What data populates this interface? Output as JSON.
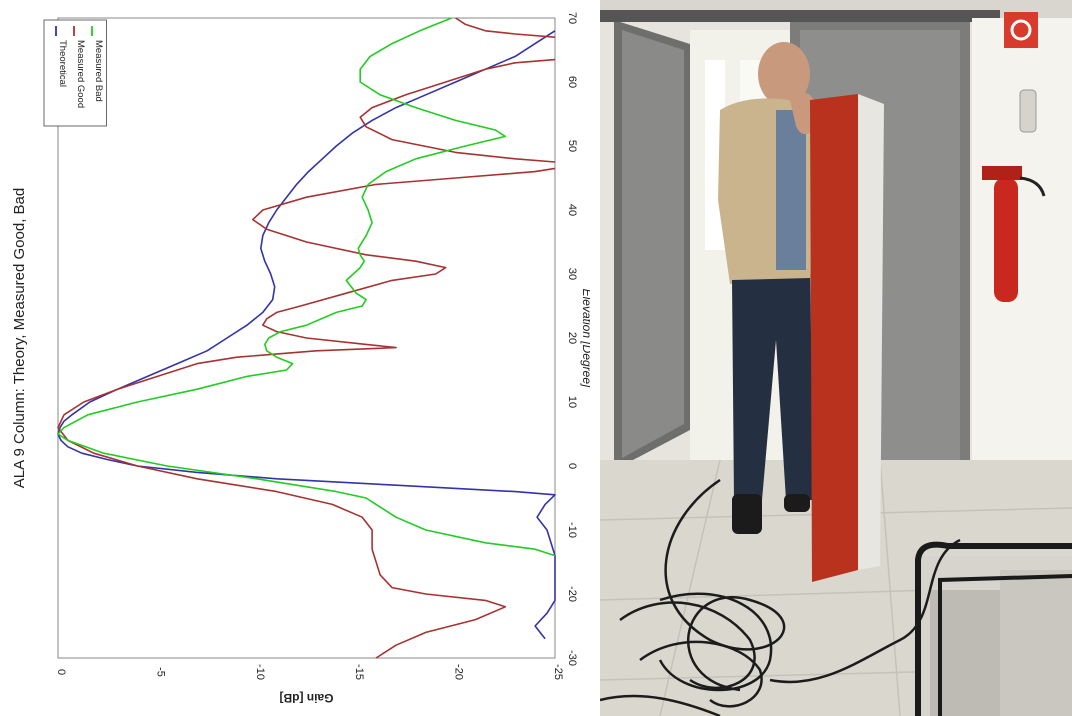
{
  "chart_data": {
    "type": "line",
    "title": "ALA 9 Column: Theory, Measured Good, Bad",
    "xlabel": "Elevation [Degree]",
    "ylabel": "Gain [dB]",
    "xlim": [
      -30,
      70
    ],
    "ylim": [
      -25,
      0
    ],
    "x_ticks": [
      "-30",
      "-20",
      "-10",
      "0",
      "10",
      "20",
      "30",
      "40",
      "50",
      "60",
      "70"
    ],
    "y_ticks": [
      "-25",
      "-20",
      "-15",
      "-10",
      "-5",
      "0"
    ],
    "orientation": "rotated 90 degrees clockwise",
    "grid": true,
    "legend_position": "top-left",
    "series": [
      {
        "name": "Theoretical",
        "color": "#3333aa",
        "points": [
          [
            -27,
            -24.5
          ],
          [
            -25,
            -24
          ],
          [
            -23,
            -24.6
          ],
          [
            -21,
            -25
          ],
          [
            -20,
            -25
          ],
          [
            -14,
            -25
          ],
          [
            -10,
            -24.6
          ],
          [
            -8,
            -24.1
          ],
          [
            -6,
            -24.5
          ],
          [
            -4.5,
            -25
          ],
          [
            -4,
            -23
          ],
          [
            -3,
            -17
          ],
          [
            -2,
            -11
          ],
          [
            -1,
            -7
          ],
          [
            0,
            -4
          ],
          [
            1,
            -2.5
          ],
          [
            2,
            -1.2
          ],
          [
            3,
            -0.5
          ],
          [
            4,
            -0.15
          ],
          [
            5,
            0
          ],
          [
            6,
            -0.1
          ],
          [
            7,
            -0.3
          ],
          [
            8,
            -0.7
          ],
          [
            10,
            -1.6
          ],
          [
            12,
            -3
          ],
          [
            14,
            -4.5
          ],
          [
            16,
            -6
          ],
          [
            18,
            -7.5
          ],
          [
            20,
            -8.5
          ],
          [
            22,
            -9.5
          ],
          [
            24,
            -10.3
          ],
          [
            26,
            -10.8
          ],
          [
            28,
            -10.9
          ],
          [
            30,
            -10.7
          ],
          [
            32,
            -10.4
          ],
          [
            34,
            -10.2
          ],
          [
            36,
            -10.3
          ],
          [
            38,
            -10.6
          ],
          [
            40,
            -11
          ],
          [
            42,
            -11.5
          ],
          [
            44,
            -12
          ],
          [
            46,
            -12.6
          ],
          [
            48,
            -13.3
          ],
          [
            50,
            -14
          ],
          [
            52,
            -14.8
          ],
          [
            54,
            -15.8
          ],
          [
            56,
            -17
          ],
          [
            58,
            -18.5
          ],
          [
            60,
            -20
          ],
          [
            62,
            -21.5
          ],
          [
            64,
            -23
          ],
          [
            66,
            -24
          ],
          [
            68,
            -25
          ]
        ]
      },
      {
        "name": "Measured Good",
        "color": "#a83232",
        "points": [
          [
            -30,
            -16
          ],
          [
            -28,
            -17
          ],
          [
            -26,
            -18.5
          ],
          [
            -24,
            -21
          ],
          [
            -22,
            -22.5
          ],
          [
            -21,
            -21.5
          ],
          [
            -20,
            -18.5
          ],
          [
            -19,
            -16.8
          ],
          [
            -17,
            -16.2
          ],
          [
            -15,
            -16
          ],
          [
            -13,
            -15.8
          ],
          [
            -10,
            -15.8
          ],
          [
            -8,
            -15.3
          ],
          [
            -6,
            -13.8
          ],
          [
            -4,
            -11
          ],
          [
            -2,
            -7
          ],
          [
            0,
            -4
          ],
          [
            2,
            -1.8
          ],
          [
            4,
            -0.5
          ],
          [
            6,
            0
          ],
          [
            8,
            -0.3
          ],
          [
            10,
            -1.3
          ],
          [
            12,
            -3
          ],
          [
            14,
            -5
          ],
          [
            16,
            -7
          ],
          [
            17,
            -9
          ],
          [
            18,
            -13
          ],
          [
            18.5,
            -17
          ],
          [
            19,
            -15.5
          ],
          [
            20,
            -12.5
          ],
          [
            21,
            -11
          ],
          [
            22,
            -10.3
          ],
          [
            23,
            -10.5
          ],
          [
            24,
            -11
          ],
          [
            25,
            -12.2
          ],
          [
            27,
            -14.5
          ],
          [
            29,
            -16.8
          ],
          [
            30,
            -19
          ],
          [
            31,
            -19.5
          ],
          [
            32,
            -18
          ],
          [
            33,
            -15.5
          ],
          [
            35,
            -12.5
          ],
          [
            37,
            -10.5
          ],
          [
            38.5,
            -9.8
          ],
          [
            40,
            -10.3
          ],
          [
            42,
            -12.5
          ],
          [
            44,
            -16
          ],
          [
            45,
            -20
          ],
          [
            46,
            -24
          ],
          [
            46.5,
            -25
          ]
        ]
      },
      {
        "name": "Measured Good",
        "color": "#a83232",
        "points": [
          [
            47.5,
            -25
          ],
          [
            48,
            -23
          ],
          [
            49,
            -20
          ],
          [
            51,
            -16.8
          ],
          [
            53,
            -15.5
          ],
          [
            54.5,
            -15.2
          ],
          [
            56,
            -15.8
          ],
          [
            58,
            -17.5
          ],
          [
            60,
            -19.5
          ],
          [
            62,
            -21.5
          ],
          [
            63,
            -23
          ],
          [
            63.5,
            -25
          ]
        ]
      },
      {
        "name": "Measured Good",
        "color": "#a83232",
        "points": [
          [
            67,
            -25
          ],
          [
            67.5,
            -23
          ],
          [
            68,
            -21.5
          ],
          [
            69,
            -20.5
          ],
          [
            70,
            -20
          ]
        ]
      },
      {
        "name": "Measured Bad",
        "color": "#22cc22",
        "points": [
          [
            -14,
            -25
          ],
          [
            -13,
            -24
          ],
          [
            -12,
            -21.5
          ],
          [
            -10,
            -18.5
          ],
          [
            -8,
            -17
          ],
          [
            -6,
            -16
          ],
          [
            -5,
            -15.5
          ],
          [
            -4,
            -14
          ],
          [
            -2,
            -10
          ],
          [
            0,
            -5.5
          ],
          [
            2,
            -2.3
          ],
          [
            4,
            -0.5
          ],
          [
            5,
            0
          ],
          [
            6,
            -0.3
          ],
          [
            8,
            -1.5
          ],
          [
            10,
            -4
          ],
          [
            12,
            -7
          ],
          [
            14,
            -9.5
          ],
          [
            15,
            -11.5
          ],
          [
            16,
            -11.8
          ],
          [
            17,
            -11
          ],
          [
            18,
            -10.5
          ],
          [
            19,
            -10.4
          ],
          [
            20,
            -10.6
          ],
          [
            21,
            -11.2
          ],
          [
            22,
            -12.5
          ],
          [
            24,
            -14
          ],
          [
            25,
            -15.3
          ],
          [
            26,
            -15.5
          ],
          [
            27,
            -15
          ],
          [
            29,
            -14.5
          ],
          [
            31,
            -15.2
          ],
          [
            32,
            -15.4
          ],
          [
            33,
            -15.2
          ],
          [
            34,
            -15.1
          ],
          [
            36,
            -15.5
          ],
          [
            38,
            -15.8
          ],
          [
            40,
            -15.6
          ],
          [
            42,
            -15.3
          ],
          [
            44,
            -15.6
          ],
          [
            46,
            -16.5
          ],
          [
            48,
            -18
          ],
          [
            50,
            -20.5
          ],
          [
            51.5,
            -22.5
          ],
          [
            52.5,
            -22
          ],
          [
            54,
            -20
          ],
          [
            56,
            -18
          ],
          [
            58,
            -16.2
          ],
          [
            60,
            -15.2
          ],
          [
            62,
            -15.2
          ],
          [
            64,
            -15.7
          ],
          [
            66,
            -16.8
          ],
          [
            68,
            -18.2
          ],
          [
            70,
            -19.8
          ]
        ]
      }
    ],
    "legend": [
      "Theoretical",
      "Measured Good",
      "Measured Bad"
    ]
  },
  "photo": {
    "description_icon": "photo-image"
  }
}
